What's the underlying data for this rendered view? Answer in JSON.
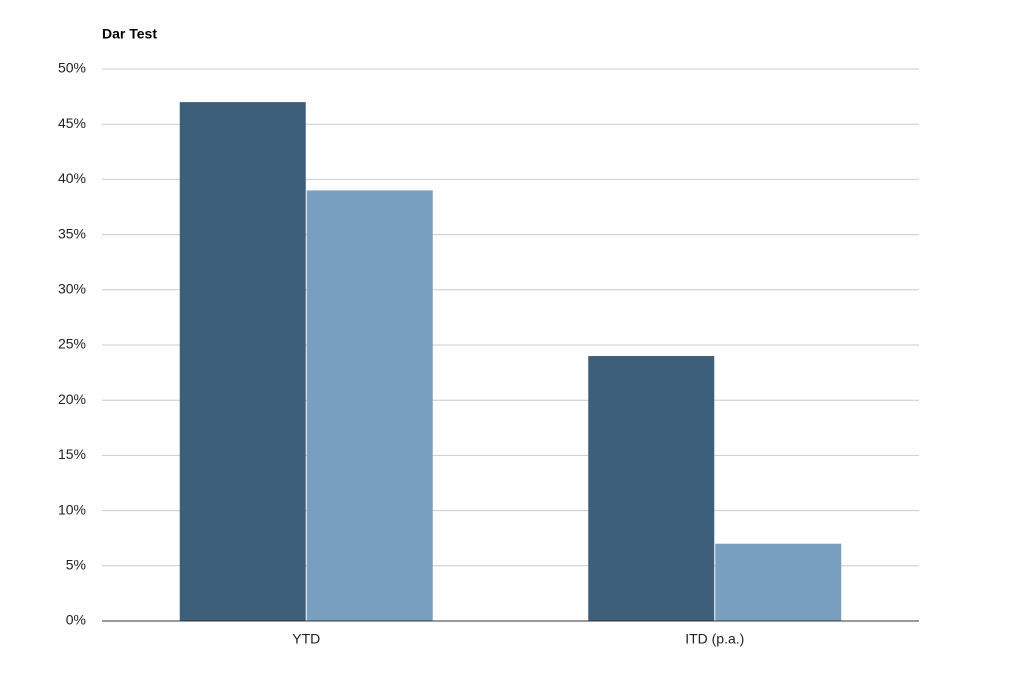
{
  "chart_data": {
    "type": "bar",
    "title": "Dar Test",
    "categories": [
      "YTD",
      "ITD (p.a.)"
    ],
    "series": [
      {
        "color": "#3d5f7a",
        "values": [
          47,
          24
        ]
      },
      {
        "color": "#789fc0",
        "values": [
          39,
          7
        ]
      }
    ],
    "ylim": [
      0,
      50
    ],
    "yticks": [
      {
        "value": 0,
        "label": "0%"
      },
      {
        "value": 5,
        "label": "5%"
      },
      {
        "value": 10,
        "label": "10%"
      },
      {
        "value": 15,
        "label": "15%"
      },
      {
        "value": 20,
        "label": "20%"
      },
      {
        "value": 25,
        "label": "25%"
      },
      {
        "value": 30,
        "label": "30%"
      },
      {
        "value": 35,
        "label": "35%"
      },
      {
        "value": 40,
        "label": "40%"
      },
      {
        "value": 45,
        "label": "45%"
      },
      {
        "value": 50,
        "label": "50%"
      }
    ],
    "grid": true
  }
}
